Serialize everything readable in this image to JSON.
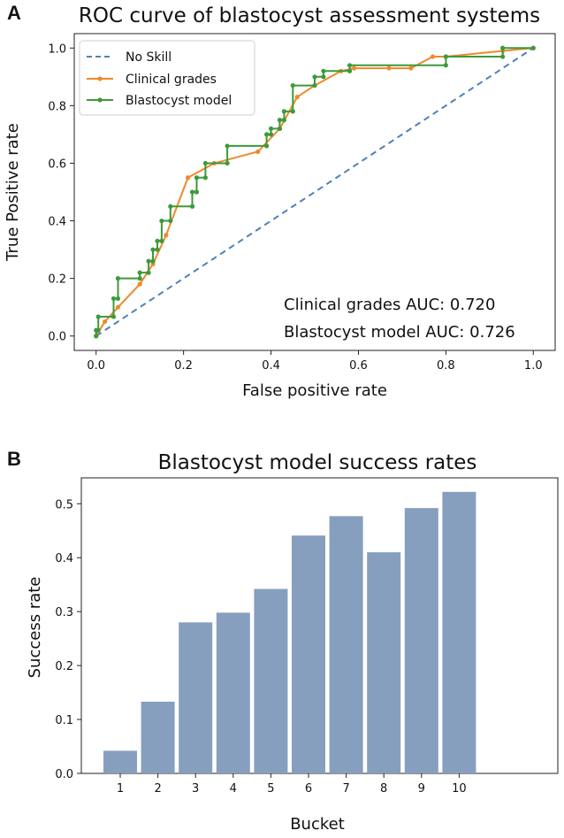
{
  "panels": {
    "a_label": "A",
    "b_label": "B"
  },
  "chart_data": [
    {
      "type": "line",
      "title": "ROC curve of blastocyst assessment systems",
      "xlabel": "False positive rate",
      "ylabel": "True Positive rate",
      "xlim": [
        -0.05,
        1.05
      ],
      "ylim": [
        -0.05,
        1.05
      ],
      "xticks": [
        "0.0",
        "0.2",
        "0.4",
        "0.6",
        "0.8",
        "1.0"
      ],
      "yticks": [
        "0.0",
        "0.2",
        "0.4",
        "0.6",
        "0.8",
        "1.0"
      ],
      "legend_position": "top-left",
      "series": [
        {
          "name": "No Skill",
          "color": "#4f81b5",
          "style": "dashed",
          "x": [
            0,
            1
          ],
          "y": [
            0,
            1
          ]
        },
        {
          "name": "Clinical grades",
          "color": "#f0892b",
          "style": "solid-markers",
          "x": [
            0,
            0.02,
            0.05,
            0.1,
            0.13,
            0.16,
            0.21,
            0.27,
            0.37,
            0.42,
            0.46,
            0.5,
            0.56,
            0.59,
            0.67,
            0.72,
            0.77,
            0.8,
            0.93,
            1.0
          ],
          "y": [
            0,
            0.05,
            0.1,
            0.18,
            0.25,
            0.35,
            0.55,
            0.6,
            0.64,
            0.72,
            0.83,
            0.87,
            0.92,
            0.93,
            0.93,
            0.93,
            0.97,
            0.97,
            0.99,
            1.0
          ]
        },
        {
          "name": "Blastocyst model",
          "color": "#3d9a3a",
          "style": "step-markers",
          "x": [
            0,
            0,
            0.005,
            0.005,
            0.04,
            0.04,
            0.05,
            0.05,
            0.1,
            0.1,
            0.12,
            0.12,
            0.13,
            0.13,
            0.14,
            0.14,
            0.15,
            0.15,
            0.17,
            0.17,
            0.22,
            0.22,
            0.23,
            0.23,
            0.25,
            0.25,
            0.3,
            0.3,
            0.39,
            0.39,
            0.4,
            0.4,
            0.42,
            0.42,
            0.43,
            0.43,
            0.45,
            0.45,
            0.5,
            0.5,
            0.52,
            0.52,
            0.58,
            0.58,
            0.8,
            0.8,
            0.93,
            0.93,
            1.0
          ],
          "y": [
            0,
            0.02,
            0.02,
            0.067,
            0.067,
            0.13,
            0.13,
            0.2,
            0.2,
            0.22,
            0.22,
            0.26,
            0.26,
            0.3,
            0.3,
            0.33,
            0.33,
            0.4,
            0.4,
            0.45,
            0.45,
            0.5,
            0.5,
            0.55,
            0.55,
            0.6,
            0.6,
            0.66,
            0.66,
            0.7,
            0.7,
            0.72,
            0.72,
            0.75,
            0.75,
            0.78,
            0.78,
            0.87,
            0.87,
            0.9,
            0.9,
            0.92,
            0.92,
            0.94,
            0.94,
            0.97,
            0.97,
            1.0,
            1.0
          ]
        }
      ],
      "annotations": [
        "Clinical grades AUC: 0.720",
        "Blastocyst model AUC: 0.726"
      ]
    },
    {
      "type": "bar",
      "title": "Blastocyst model success rates",
      "xlabel": "Bucket",
      "ylabel": "Success rate",
      "categories": [
        "1",
        "2",
        "3",
        "4",
        "5",
        "6",
        "7",
        "8",
        "9",
        "10"
      ],
      "values": [
        0.042,
        0.133,
        0.28,
        0.298,
        0.342,
        0.441,
        0.477,
        0.41,
        0.492,
        0.522
      ],
      "ylim": [
        0,
        0.548
      ],
      "yticks": [
        "0.0",
        "0.1",
        "0.2",
        "0.3",
        "0.4",
        "0.5"
      ],
      "bar_color": "#879fbe"
    }
  ]
}
